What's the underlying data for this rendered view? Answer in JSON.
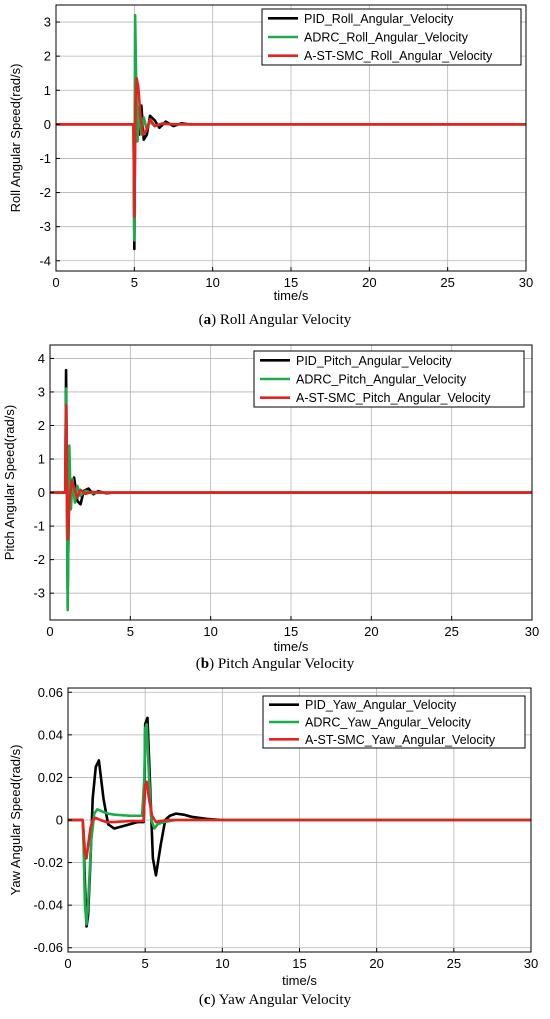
{
  "chart_data": [
    {
      "type": "line",
      "ylabel": "Roll Angular Speed(rad/s)",
      "xlabel": "time/s",
      "xlim": [
        0,
        30
      ],
      "ylim": [
        -4.3,
        3.5
      ],
      "xticks": [
        0,
        5,
        10,
        15,
        20,
        25,
        30
      ],
      "yticks": [
        -4,
        -3,
        -2,
        -1,
        0,
        1,
        2,
        3
      ],
      "grid": true,
      "legend_position": "top-right",
      "caption_letter": "a",
      "caption_text": " Roll Angular Velocity",
      "series": [
        {
          "name": "PID_Roll_Angular_Velocity",
          "color": "#000000",
          "x": [
            0,
            4.95,
            5.0,
            5.05,
            5.15,
            5.3,
            5.45,
            5.6,
            5.8,
            6.0,
            6.3,
            6.6,
            7.0,
            7.5,
            8.0,
            8.5,
            30
          ],
          "y": [
            0,
            0,
            -3.65,
            0.2,
            0.6,
            -0.3,
            0.55,
            -0.45,
            -0.3,
            0.25,
            0.12,
            -0.1,
            0.08,
            -0.05,
            0.03,
            0,
            0
          ]
        },
        {
          "name": "ADRC_Roll_Angular_Velocity",
          "color": "#1aab4a",
          "x": [
            0,
            4.95,
            5.0,
            5.05,
            5.12,
            5.2,
            5.3,
            5.45,
            5.6,
            5.8,
            6.0,
            6.3,
            6.8,
            7.5,
            30
          ],
          "y": [
            0,
            0,
            -3.4,
            3.2,
            1.2,
            -0.5,
            0.5,
            -0.3,
            0.2,
            -0.15,
            0.1,
            -0.05,
            0.03,
            0,
            0
          ]
        },
        {
          "name": "A-ST-SMC_Roll_Angular_Velocity",
          "color": "#e8211e",
          "x": [
            0,
            4.95,
            5.0,
            5.08,
            5.15,
            5.25,
            5.4,
            5.55,
            5.75,
            6.0,
            6.3,
            6.8,
            7.5,
            30
          ],
          "y": [
            0,
            0,
            -2.7,
            0.6,
            1.35,
            1.1,
            0.2,
            -0.3,
            -0.2,
            0.15,
            -0.05,
            0.02,
            0,
            0
          ]
        }
      ]
    },
    {
      "type": "line",
      "ylabel": "Pitch Angular Speed(rad/s)",
      "xlabel": "time/s",
      "xlim": [
        0,
        30
      ],
      "ylim": [
        -3.8,
        4.4
      ],
      "xticks": [
        0,
        5,
        10,
        15,
        20,
        25,
        30
      ],
      "yticks": [
        -3,
        -2,
        -1,
        0,
        1,
        2,
        3,
        4
      ],
      "grid": true,
      "legend_position": "top-right",
      "caption_letter": "b",
      "caption_text": " Pitch Angular Velocity",
      "series": [
        {
          "name": "PID_Pitch_Angular_Velocity",
          "color": "#000000",
          "x": [
            0,
            0.95,
            1.0,
            1.1,
            1.2,
            1.35,
            1.5,
            1.7,
            1.9,
            2.1,
            2.4,
            2.7,
            3.0,
            3.5,
            4.0,
            30
          ],
          "y": [
            0,
            0,
            3.65,
            -2.9,
            0.3,
            0.1,
            0.45,
            -0.25,
            -0.35,
            0.05,
            0.12,
            -0.05,
            0.04,
            -0.02,
            0,
            0
          ]
        },
        {
          "name": "ADRC_Pitch_Angular_Velocity",
          "color": "#1aab4a",
          "x": [
            0,
            0.95,
            1.0,
            1.1,
            1.2,
            1.3,
            1.4,
            1.55,
            1.7,
            1.9,
            2.2,
            2.6,
            3.2,
            30
          ],
          "y": [
            0,
            0,
            3.1,
            -3.5,
            1.4,
            -0.5,
            0.4,
            -0.3,
            0.2,
            -0.1,
            0.05,
            -0.02,
            0,
            0
          ]
        },
        {
          "name": "A-ST-SMC_Pitch_Angular_Velocity",
          "color": "#e8211e",
          "x": [
            0,
            0.95,
            1.0,
            1.1,
            1.2,
            1.35,
            1.5,
            1.7,
            1.9,
            2.2,
            2.6,
            3.2,
            30
          ],
          "y": [
            0,
            0,
            2.6,
            -1.4,
            -0.3,
            0.35,
            0.15,
            -0.15,
            0.08,
            -0.04,
            0.02,
            0,
            0
          ]
        }
      ]
    },
    {
      "type": "line",
      "ylabel": "Yaw Angular Speed(rad/s)",
      "xlabel": "time/s",
      "xlim": [
        0,
        30
      ],
      "ylim": [
        -0.062,
        0.062
      ],
      "xticks": [
        0,
        5,
        10,
        15,
        20,
        25,
        30
      ],
      "yticks": [
        -0.06,
        -0.04,
        -0.02,
        0,
        0.02,
        0.04,
        0.06
      ],
      "grid": true,
      "legend_position": "top-right",
      "caption_letter": "c",
      "caption_text": " Yaw Angular Velocity",
      "series": [
        {
          "name": "PID_Yaw_Angular_Velocity",
          "color": "#000000",
          "x": [
            0,
            0.95,
            1.0,
            1.1,
            1.2,
            1.3,
            1.45,
            1.6,
            1.8,
            2.0,
            2.3,
            2.6,
            3.0,
            3.5,
            4.0,
            4.5,
            4.9,
            4.95,
            5.0,
            5.15,
            5.3,
            5.5,
            5.7,
            6.0,
            6.3,
            6.6,
            7.0,
            7.5,
            8.0,
            9.0,
            10.0,
            30
          ],
          "y": [
            0,
            0,
            -0.005,
            -0.03,
            -0.05,
            -0.045,
            -0.02,
            0.01,
            0.025,
            0.028,
            0.01,
            -0.002,
            -0.004,
            -0.003,
            -0.002,
            -0.001,
            -0.001,
            0.01,
            0.045,
            0.048,
            0.02,
            -0.018,
            -0.026,
            -0.012,
            0.0,
            0.002,
            0.003,
            0.0025,
            0.0015,
            0.0005,
            0,
            0
          ]
        },
        {
          "name": "ADRC_Yaw_Angular_Velocity",
          "color": "#1aab4a",
          "x": [
            0,
            0.95,
            1.0,
            1.1,
            1.2,
            1.3,
            1.5,
            1.7,
            1.9,
            2.2,
            2.6,
            3.0,
            4.0,
            4.8,
            4.95,
            5.0,
            5.1,
            5.25,
            5.4,
            5.6,
            5.8,
            6.2,
            7.0,
            8.0,
            30
          ],
          "y": [
            0,
            0,
            -0.01,
            -0.04,
            -0.049,
            -0.04,
            -0.01,
            0.003,
            0.005,
            0.004,
            0.003,
            0.0025,
            0.002,
            0.002,
            0.02,
            0.043,
            0.045,
            0.02,
            0.0,
            -0.004,
            -0.002,
            -0.001,
            0,
            0,
            0
          ]
        },
        {
          "name": "A-ST-SMC_Yaw_Angular_Velocity",
          "color": "#e8211e",
          "x": [
            0,
            0.95,
            1.0,
            1.1,
            1.2,
            1.3,
            1.45,
            1.6,
            1.8,
            2.1,
            2.5,
            3.0,
            4.0,
            4.9,
            4.95,
            5.0,
            5.1,
            5.25,
            5.45,
            5.7,
            6.0,
            6.5,
            7.5,
            30
          ],
          "y": [
            0,
            0,
            -0.005,
            -0.015,
            -0.018,
            -0.012,
            -0.004,
            0.0,
            0.001,
            0.0,
            -0.001,
            -0.001,
            -0.0005,
            -0.0005,
            0.008,
            0.016,
            0.018,
            0.01,
            0.002,
            -0.001,
            -0.0005,
            0,
            0,
            0
          ]
        }
      ]
    }
  ]
}
